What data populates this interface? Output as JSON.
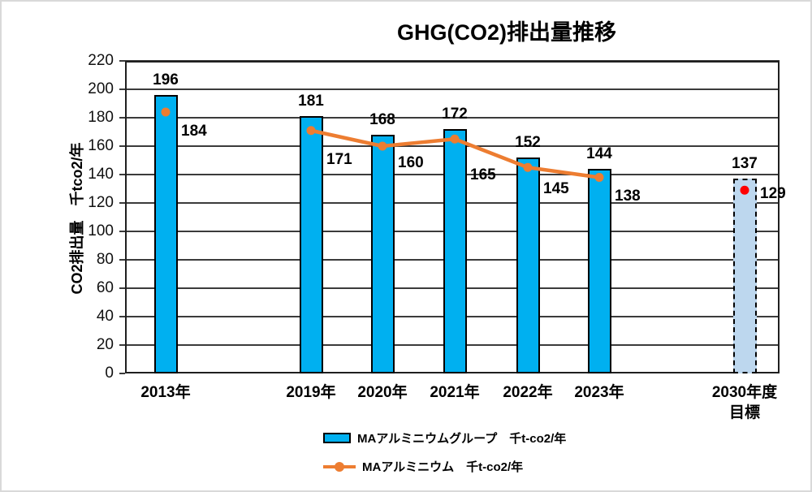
{
  "chart_data": {
    "type": "bar",
    "title": "GHG(CO2)排出量推移",
    "ylabel": "CO2排出量　千tco2/年",
    "xlabel": "",
    "ylim": [
      0,
      220
    ],
    "ytick_step": 20,
    "yticks": [
      0,
      20,
      40,
      60,
      80,
      100,
      120,
      140,
      160,
      180,
      200,
      220
    ],
    "grid": true,
    "legend_position": "bottom",
    "categories": [
      "2013年",
      "2019年",
      "2020年",
      "2021年",
      "2022年",
      "2023年",
      "2030年度\n目標"
    ],
    "series": [
      {
        "name": "MAアルミニウムグループ　千t-co2/年",
        "type": "bar",
        "color": "#00B0F0",
        "border_color": "#000000",
        "values": [
          196,
          181,
          168,
          172,
          152,
          144,
          137
        ],
        "target_category": "2030年度 目標",
        "target_value": 137,
        "target_fill": "#BDD7EE",
        "target_border_style": "dashed"
      },
      {
        "name": "MAアルミニウム　千t-co2/年",
        "type": "line",
        "color": "#ED7D31",
        "values": [
          184,
          171,
          160,
          165,
          145,
          138,
          129
        ],
        "connected_point_indexes": [
          1,
          2,
          3,
          4,
          5
        ],
        "isolated_point_indexes": [
          0,
          6
        ],
        "target_marker_color": "#FF0000"
      }
    ]
  },
  "frame": {
    "background": "#FFFFFF",
    "outer_border_color": "#D9D9D9",
    "grid_color": "#3B3B3B",
    "text_color": "#000000"
  }
}
